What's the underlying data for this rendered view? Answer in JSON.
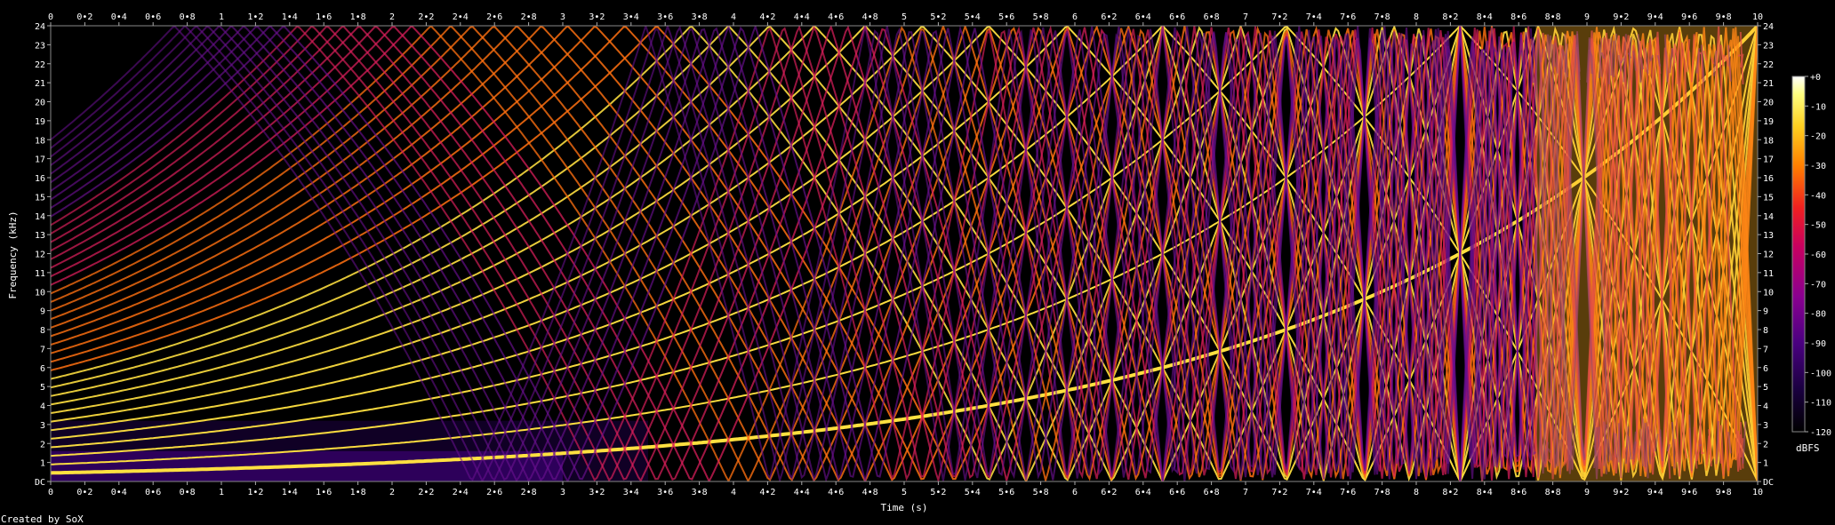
{
  "chart_data": {
    "type": "heatmap",
    "title": "",
    "xlabel": "Time (s)",
    "ylabel": "Frequency (kHz)",
    "xlim": [
      0,
      10
    ],
    "ylim": [
      0,
      24
    ],
    "x_ticks": [
      "0",
      "0•2",
      "0•4",
      "0•6",
      "0•8",
      "1",
      "1•2",
      "1•4",
      "1•6",
      "1•8",
      "2",
      "2•2",
      "2•4",
      "2•6",
      "2•8",
      "3",
      "3•2",
      "3•4",
      "3•6",
      "3•8",
      "4",
      "4•2",
      "4•4",
      "4•6",
      "4•8",
      "5",
      "5•2",
      "5•4",
      "5•6",
      "5•8",
      "6",
      "6•2",
      "6•4",
      "6•6",
      "6•8",
      "7",
      "7•2",
      "7•4",
      "7•6",
      "7•8",
      "8",
      "8•2",
      "8•4",
      "8•6",
      "8•8",
      "9",
      "9•2",
      "9•4",
      "9•6",
      "9•8",
      "10"
    ],
    "y_ticks": [
      "DC",
      "1",
      "2",
      "3",
      "4",
      "5",
      "6",
      "7",
      "8",
      "9",
      "10",
      "11",
      "12",
      "13",
      "14",
      "15",
      "16",
      "17",
      "18",
      "19",
      "20",
      "21",
      "22",
      "23",
      "24"
    ],
    "colorbar": {
      "label": "dBFS",
      "ticks": [
        "+0",
        "-10",
        "-20",
        "-30",
        "-40",
        "-50",
        "-60",
        "-70",
        "-80",
        "-90",
        "-100",
        "-110",
        "-120"
      ],
      "range": [
        -120,
        0
      ],
      "colors": [
        "#000000",
        "#1a0040",
        "#4a0080",
        "#8a0090",
        "#c80060",
        "#f02020",
        "#ff8000",
        "#ffd020",
        "#ffff80",
        "#ffffff"
      ]
    },
    "signal": {
      "description_shape": "exponential frequency sweep with harmonics",
      "fundamental_start_khz": 0.45,
      "fundamental_end_khz": 24,
      "harmonics": 40
    }
  },
  "footer": {
    "credit": "Created by SoX"
  }
}
